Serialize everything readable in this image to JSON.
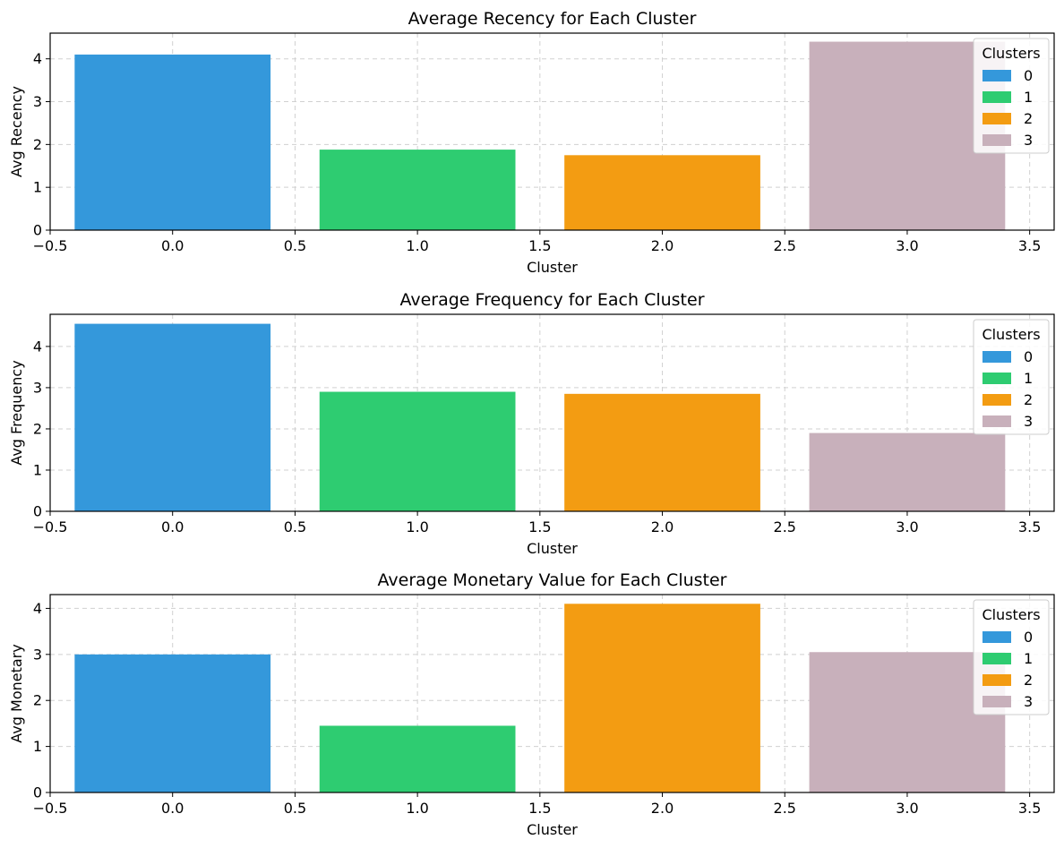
{
  "colors": {
    "cluster_0": "#3498db",
    "cluster_1": "#2ecc71",
    "cluster_2": "#f39c12",
    "cluster_3": "#c8b0bb",
    "grid": "#d0d0d0",
    "frame": "#000000"
  },
  "chart_data": [
    {
      "type": "bar",
      "title": "Average Recency for Each Cluster",
      "xlabel": "Cluster",
      "ylabel": "Avg Recency",
      "x": [
        0,
        1,
        2,
        3
      ],
      "values": [
        4.1,
        1.88,
        1.75,
        4.4
      ],
      "xlim": [
        -0.5,
        3.6
      ],
      "ylim": [
        0,
        4.6
      ],
      "xticks": [
        -0.5,
        0.0,
        0.5,
        1.0,
        1.5,
        2.0,
        2.5,
        3.0,
        3.5
      ],
      "xtick_labels": [
        "−0.5",
        "0.0",
        "0.5",
        "1.0",
        "1.5",
        "2.0",
        "2.5",
        "3.0",
        "3.5"
      ],
      "yticks": [
        0,
        1,
        2,
        3,
        4
      ],
      "ytick_labels": [
        "0",
        "1",
        "2",
        "3",
        "4"
      ],
      "bar_width": 0.8,
      "grid": true,
      "legend": {
        "title": "Clusters",
        "labels": [
          "0",
          "1",
          "2",
          "3"
        ],
        "placement": "top-right"
      }
    },
    {
      "type": "bar",
      "title": "Average Frequency for Each Cluster",
      "xlabel": "Cluster",
      "ylabel": "Avg Frequency",
      "x": [
        0,
        1,
        2,
        3
      ],
      "values": [
        4.55,
        2.9,
        2.85,
        1.9
      ],
      "xlim": [
        -0.5,
        3.6
      ],
      "ylim": [
        0,
        4.78
      ],
      "xticks": [
        -0.5,
        0.0,
        0.5,
        1.0,
        1.5,
        2.0,
        2.5,
        3.0,
        3.5
      ],
      "xtick_labels": [
        "−0.5",
        "0.0",
        "0.5",
        "1.0",
        "1.5",
        "2.0",
        "2.5",
        "3.0",
        "3.5"
      ],
      "yticks": [
        0,
        1,
        2,
        3,
        4
      ],
      "ytick_labels": [
        "0",
        "1",
        "2",
        "3",
        "4"
      ],
      "bar_width": 0.8,
      "grid": true,
      "legend": {
        "title": "Clusters",
        "labels": [
          "0",
          "1",
          "2",
          "3"
        ],
        "placement": "top-right"
      }
    },
    {
      "type": "bar",
      "title": "Average Monetary Value for Each Cluster",
      "xlabel": "Cluster",
      "ylabel": "Avg Monetary",
      "x": [
        0,
        1,
        2,
        3
      ],
      "values": [
        3.0,
        1.45,
        4.1,
        3.05
      ],
      "xlim": [
        -0.5,
        3.6
      ],
      "ylim": [
        0,
        4.3
      ],
      "xticks": [
        -0.5,
        0.0,
        0.5,
        1.0,
        1.5,
        2.0,
        2.5,
        3.0,
        3.5
      ],
      "xtick_labels": [
        "−0.5",
        "0.0",
        "0.5",
        "1.0",
        "1.5",
        "2.0",
        "2.5",
        "3.0",
        "3.5"
      ],
      "yticks": [
        0,
        1,
        2,
        3,
        4
      ],
      "ytick_labels": [
        "0",
        "1",
        "2",
        "3",
        "4"
      ],
      "bar_width": 0.8,
      "grid": true,
      "legend": {
        "title": "Clusters",
        "labels": [
          "0",
          "1",
          "2",
          "3"
        ],
        "placement": "top-right"
      }
    }
  ]
}
